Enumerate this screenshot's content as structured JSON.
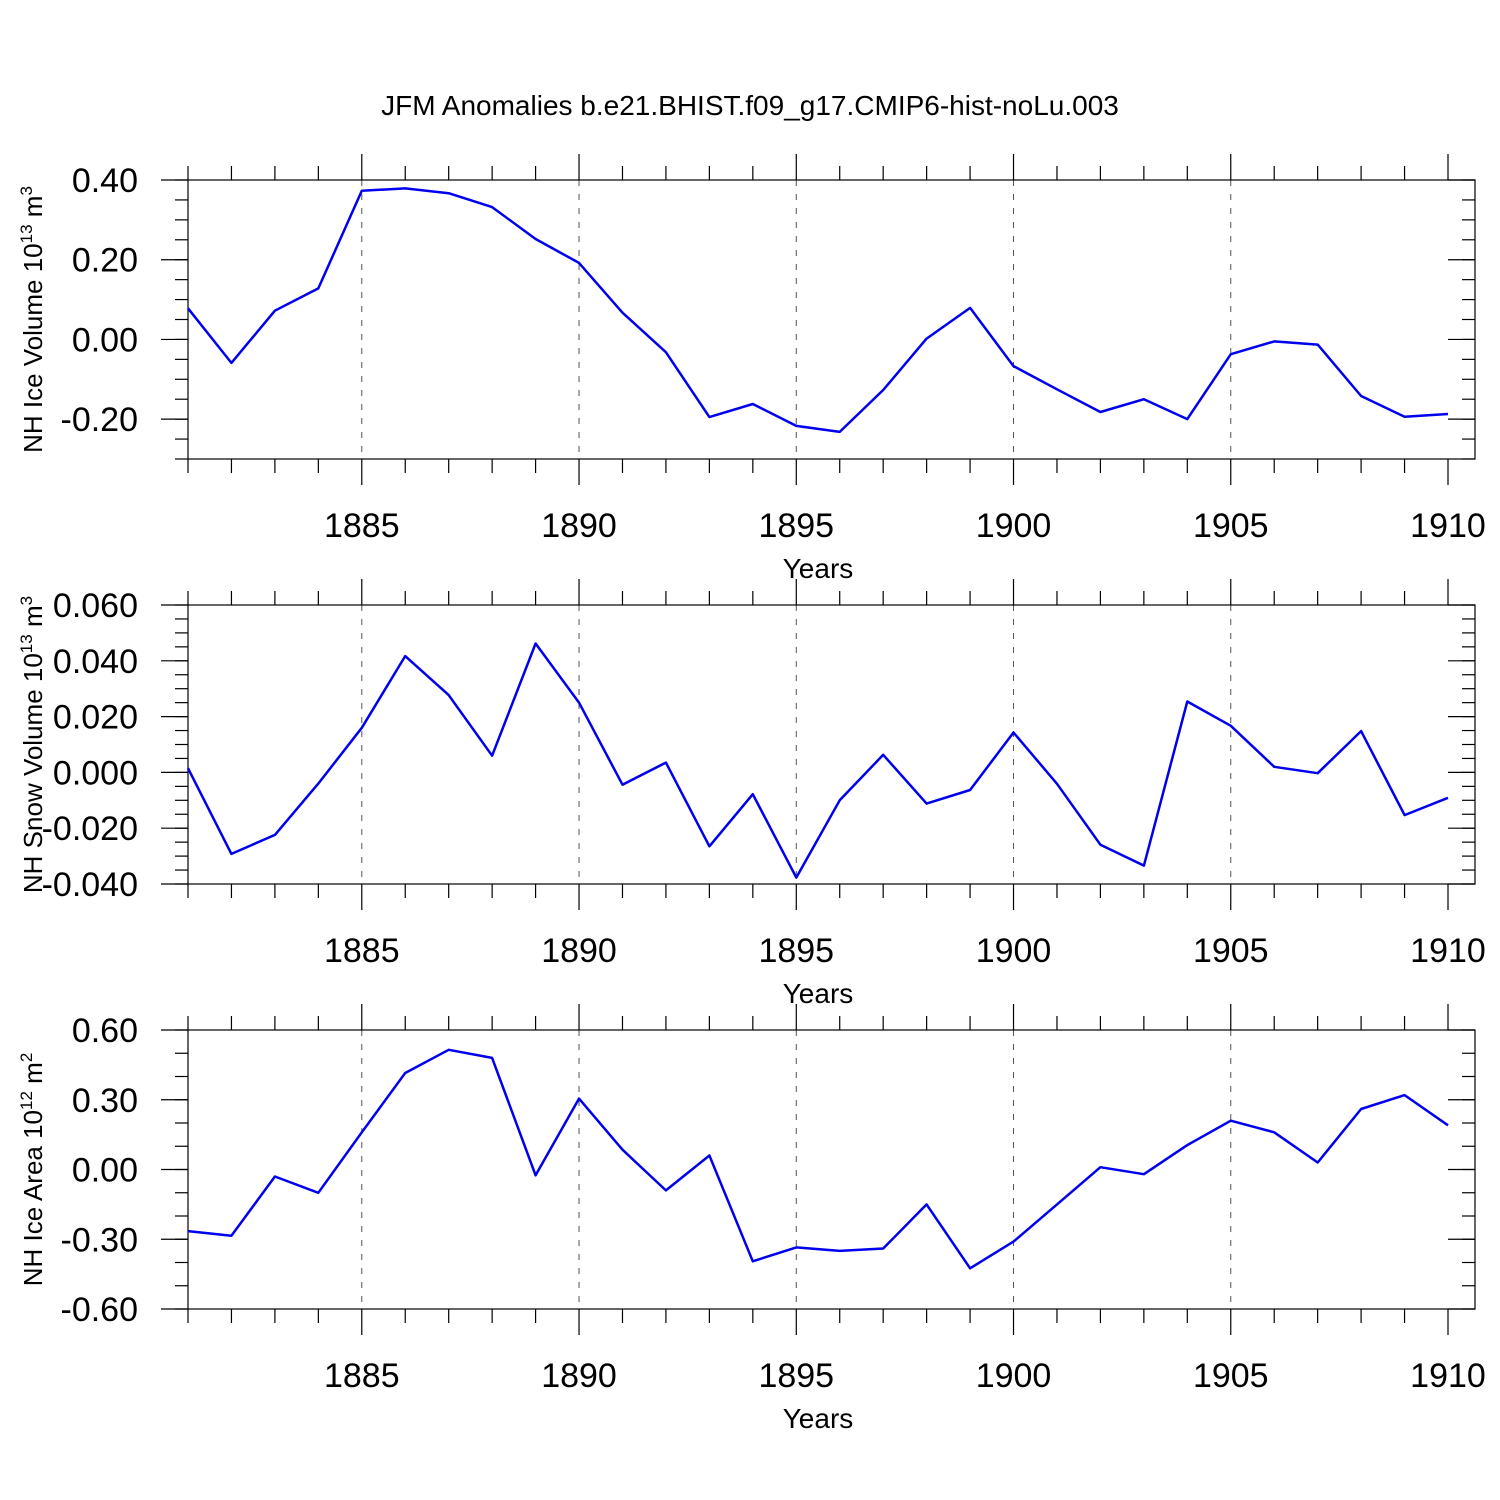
{
  "figure": {
    "title": "JFM Anomalies b.e21.BHIST.f09_g17.CMIP6-hist-noLu.003"
  },
  "chart_data": [
    {
      "type": "line",
      "title": "JFM Anomalies b.e21.BHIST.f09_g17.CMIP6-hist-noLu.003",
      "xlabel": "Years",
      "ylabel": {
        "base": "NH Ice Volume 10",
        "sup": "13",
        "unit": " m",
        "unit_sup": "3"
      },
      "xlim": [
        1881,
        1910
      ],
      "ylim": [
        -0.3,
        0.4
      ],
      "x_ticks": [
        1885,
        1890,
        1895,
        1900,
        1905,
        1910
      ],
      "x_tick_labels": [
        "1885",
        "1890",
        "1895",
        "1900",
        "1905",
        "1910"
      ],
      "y_ticks": [
        0.4,
        0.2,
        0.0,
        -0.2
      ],
      "y_tick_labels": [
        "0.40",
        "0.20",
        "0.00",
        "-0.20"
      ],
      "y_minor_step": 0.05,
      "grid": "vertical dashed at major x ticks",
      "color": "#0000ee",
      "x": [
        1881,
        1882,
        1883,
        1884,
        1885,
        1886,
        1887,
        1888,
        1889,
        1890,
        1891,
        1892,
        1893,
        1894,
        1895,
        1896,
        1897,
        1898,
        1899,
        1900,
        1901,
        1902,
        1903,
        1904,
        1905,
        1906,
        1907,
        1908,
        1909,
        1910
      ],
      "values": [
        0.078,
        -0.059,
        0.072,
        0.128,
        0.373,
        0.379,
        0.367,
        0.332,
        0.252,
        0.192,
        0.067,
        -0.032,
        -0.195,
        -0.162,
        -0.217,
        -0.232,
        -0.127,
        0.002,
        0.079,
        -0.067,
        -0.125,
        -0.182,
        -0.15,
        -0.2,
        -0.037,
        -0.005,
        -0.013,
        -0.142,
        -0.194,
        -0.187
      ]
    },
    {
      "type": "line",
      "xlabel": "Years",
      "ylabel": {
        "base": "NH Snow Volume 10",
        "sup": "13",
        "unit": " m",
        "unit_sup": "3"
      },
      "xlim": [
        1881,
        1910
      ],
      "ylim": [
        -0.04,
        0.06
      ],
      "x_ticks": [
        1885,
        1890,
        1895,
        1900,
        1905,
        1910
      ],
      "x_tick_labels": [
        "1885",
        "1890",
        "1895",
        "1900",
        "1905",
        "1910"
      ],
      "y_ticks": [
        0.06,
        0.04,
        0.02,
        0.0,
        -0.02,
        -0.04
      ],
      "y_tick_labels": [
        "0.060",
        "0.040",
        "0.020",
        "0.000",
        "-0.020",
        "-0.040"
      ],
      "y_minor_step": 0.005,
      "grid": "vertical dashed at major x ticks",
      "color": "#0000ee",
      "x": [
        1881,
        1882,
        1883,
        1884,
        1885,
        1886,
        1887,
        1888,
        1889,
        1890,
        1891,
        1892,
        1893,
        1894,
        1895,
        1896,
        1897,
        1898,
        1899,
        1900,
        1901,
        1902,
        1903,
        1904,
        1905,
        1906,
        1907,
        1908,
        1909,
        1910
      ],
      "values": [
        0.0015,
        -0.0292,
        -0.0224,
        -0.004,
        0.016,
        0.0417,
        0.0277,
        0.006,
        0.0462,
        0.025,
        -0.0044,
        0.0035,
        -0.0265,
        -0.0078,
        -0.0377,
        -0.01,
        0.0063,
        -0.0112,
        -0.0063,
        0.0143,
        -0.0041,
        -0.0259,
        -0.0334,
        0.0254,
        0.0167,
        0.002,
        -0.0003,
        0.0148,
        -0.0153,
        -0.0091
      ]
    },
    {
      "type": "line",
      "xlabel": "Years",
      "ylabel": {
        "base": "NH Ice Area 10",
        "sup": "12",
        "unit": " m",
        "unit_sup": "2"
      },
      "xlim": [
        1881,
        1910
      ],
      "ylim": [
        -0.6,
        0.6
      ],
      "x_ticks": [
        1885,
        1890,
        1895,
        1900,
        1905,
        1910
      ],
      "x_tick_labels": [
        "1885",
        "1890",
        "1895",
        "1900",
        "1905",
        "1910"
      ],
      "y_ticks": [
        0.6,
        0.3,
        0.0,
        -0.3,
        -0.6
      ],
      "y_tick_labels": [
        "0.60",
        "0.30",
        "0.00",
        "-0.30",
        "-0.60"
      ],
      "y_minor_step": 0.1,
      "grid": "vertical dashed at major x ticks",
      "color": "#0000ee",
      "x": [
        1881,
        1882,
        1883,
        1884,
        1885,
        1886,
        1887,
        1888,
        1889,
        1890,
        1891,
        1892,
        1893,
        1894,
        1895,
        1896,
        1897,
        1898,
        1899,
        1900,
        1901,
        1902,
        1903,
        1904,
        1905,
        1906,
        1907,
        1908,
        1909,
        1910
      ],
      "values": [
        -0.265,
        -0.285,
        -0.03,
        -0.1,
        0.16,
        0.415,
        0.515,
        0.48,
        -0.025,
        0.305,
        0.085,
        -0.09,
        0.06,
        -0.395,
        -0.335,
        -0.35,
        -0.34,
        -0.15,
        -0.425,
        -0.31,
        -0.15,
        0.01,
        -0.02,
        0.105,
        0.21,
        0.16,
        0.03,
        0.26,
        0.32,
        0.19
      ]
    }
  ]
}
